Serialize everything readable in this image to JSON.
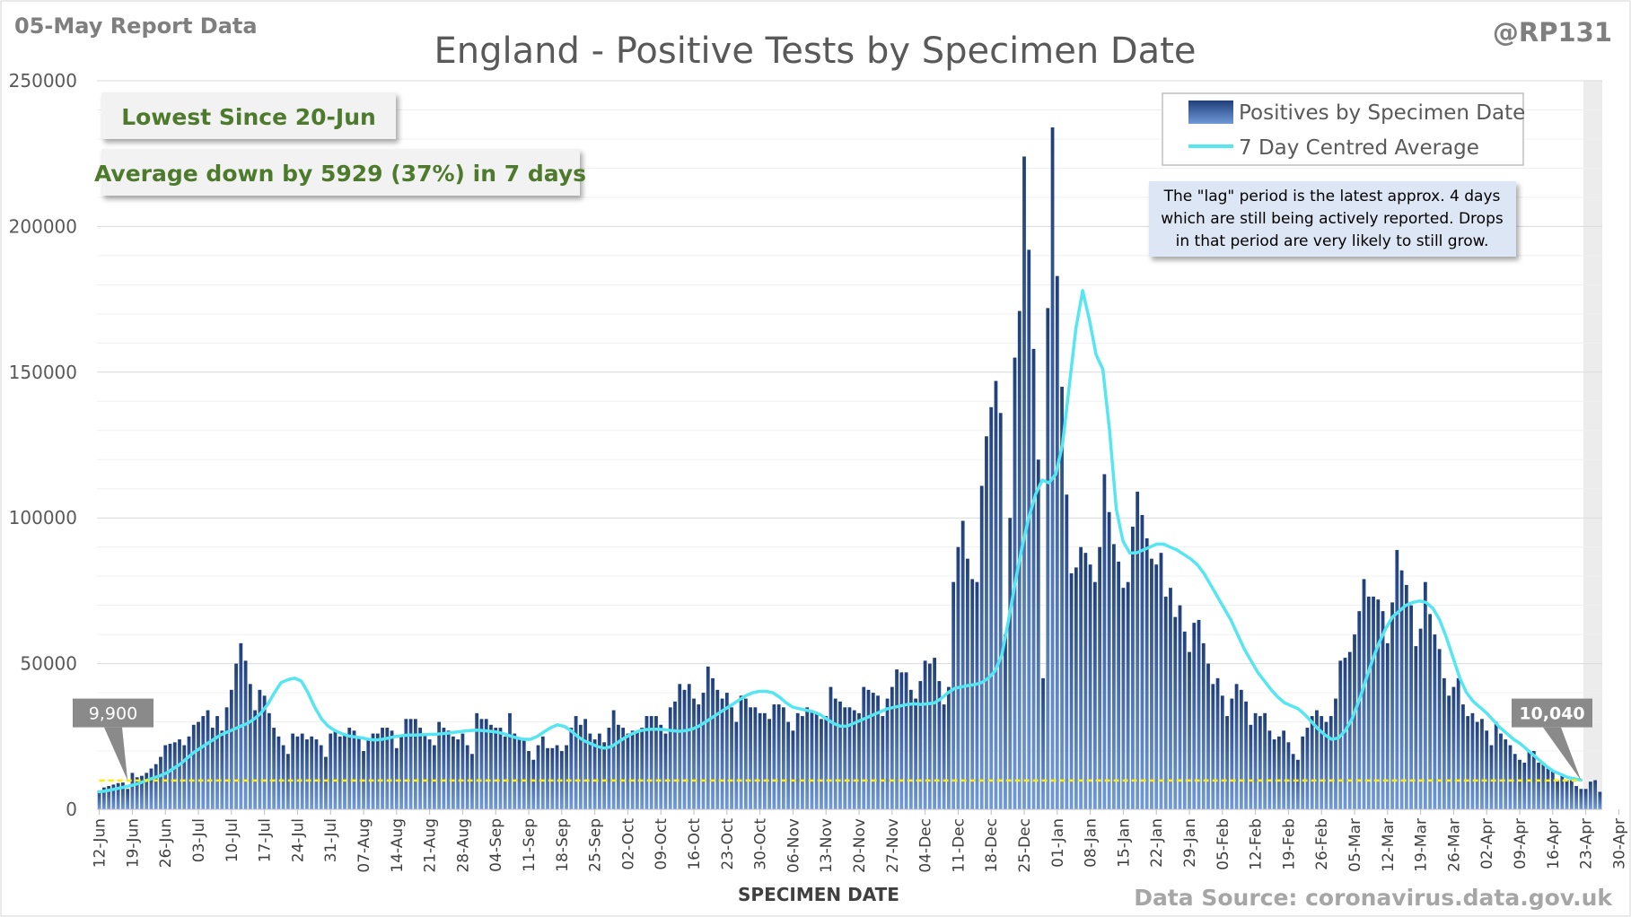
{
  "header": {
    "report_label": "05-May Report Data",
    "handle": "@RP131",
    "source": "Data Source: coronavirus.data.gov.uk"
  },
  "badges": {
    "lowest": "Lowest Since 20-Jun",
    "average_change": "Average down by 5929 (37%) in 7 days"
  },
  "note": {
    "lines": [
      "The \"lag\" period is the latest approx. 4 days",
      "which are still being actively reported. Drops",
      "in that period are very likely to still grow."
    ]
  },
  "colors": {
    "bar": "#2e4f8a",
    "bar_light": "#5a86c8",
    "avg_line": "#55e6f2",
    "threshold": "#ffee00",
    "badge_text": "#4d7a2c",
    "callout": "#8a8a8a",
    "lag_shade": "#ececec"
  },
  "chart_data": {
    "type": "bar",
    "title": "England - Positive Tests by Specimen Date",
    "xlabel": "SPECIMEN DATE",
    "ylabel": "",
    "ylim": [
      0,
      250000
    ],
    "yticks": [
      0,
      50000,
      100000,
      150000,
      200000,
      250000
    ],
    "grid": true,
    "legend_position": "top-right",
    "start_date": "12-Jun",
    "xticks": [
      "12-Jun",
      "19-Jun",
      "26-Jun",
      "03-Jul",
      "10-Jul",
      "17-Jul",
      "24-Jul",
      "31-Jul",
      "07-Aug",
      "14-Aug",
      "21-Aug",
      "28-Aug",
      "04-Sep",
      "11-Sep",
      "18-Sep",
      "25-Sep",
      "02-Oct",
      "09-Oct",
      "16-Oct",
      "23-Oct",
      "30-Oct",
      "06-Nov",
      "13-Nov",
      "20-Nov",
      "27-Nov",
      "04-Dec",
      "11-Dec",
      "18-Dec",
      "25-Dec",
      "01-Jan",
      "08-Jan",
      "15-Jan",
      "22-Jan",
      "29-Jan",
      "05-Feb",
      "12-Feb",
      "19-Feb",
      "26-Feb",
      "05-Mar",
      "12-Mar",
      "19-Mar",
      "26-Mar",
      "02-Apr",
      "09-Apr",
      "16-Apr",
      "23-Apr",
      "30-Apr"
    ],
    "series": [
      {
        "name": "Positives by Specimen Date",
        "values": [
          6500,
          7500,
          8000,
          8500,
          9000,
          9200,
          7000,
          12500,
          11000,
          11500,
          12500,
          14000,
          15500,
          18000,
          22000,
          22500,
          23000,
          24000,
          22000,
          25000,
          29000,
          30000,
          32000,
          34000,
          28000,
          32000,
          27000,
          35000,
          41000,
          50000,
          57000,
          51000,
          43000,
          34000,
          41000,
          39000,
          33000,
          28000,
          25000,
          22000,
          19000,
          26000,
          25000,
          26000,
          24000,
          25000,
          24000,
          22000,
          18000,
          26000,
          27000,
          25000,
          26000,
          28000,
          27000,
          25000,
          20000,
          24000,
          26000,
          26000,
          28000,
          28000,
          27000,
          21000,
          25000,
          31000,
          31000,
          31000,
          28000,
          26000,
          24000,
          22000,
          30000,
          28000,
          27000,
          25000,
          24000,
          26000,
          22000,
          19000,
          33000,
          31000,
          31000,
          29000,
          28000,
          28000,
          25000,
          33000,
          26000,
          24000,
          24000,
          20000,
          17000,
          22000,
          25000,
          21000,
          21000,
          22000,
          20000,
          22000,
          28000,
          32000,
          29000,
          31000,
          26000,
          24000,
          26000,
          23000,
          28000,
          34000,
          29000,
          28000,
          26000,
          27000,
          27000,
          28000,
          32000,
          32000,
          32000,
          29000,
          26000,
          35000,
          37000,
          43000,
          41000,
          43000,
          38000,
          36000,
          40000,
          49000,
          45000,
          41000,
          38000,
          40000,
          35000,
          30000,
          39000,
          38000,
          35000,
          35000,
          33000,
          33000,
          31000,
          36000,
          36000,
          35000,
          30000,
          27000,
          33000,
          32000,
          35000,
          34000,
          33000,
          31000,
          32000,
          42000,
          38000,
          37000,
          35000,
          35000,
          34000,
          33000,
          42000,
          41000,
          40000,
          39000,
          32000,
          38000,
          42000,
          48000,
          47000,
          47000,
          41000,
          38000,
          44000,
          51000,
          50000,
          52000,
          44000,
          36000,
          42000,
          78000,
          90000,
          99000,
          86000,
          79000,
          78000,
          111000,
          128000,
          138000,
          147000,
          136000,
          60000,
          100000,
          155000,
          171000,
          224000,
          192000,
          158000,
          120000,
          45000,
          172000,
          234000,
          183000,
          145000,
          108000,
          81000,
          83000,
          90000,
          88000,
          84000,
          78000,
          90000,
          115000,
          102000,
          91000,
          85000,
          76000,
          78000,
          97000,
          109000,
          101000,
          93000,
          86000,
          84000,
          88000,
          73000,
          76000,
          66000,
          70000,
          61000,
          54000,
          64000,
          65000,
          57000,
          50000,
          43000,
          45000,
          39000,
          32000,
          38000,
          43000,
          41000,
          37000,
          29000,
          33000,
          32000,
          33000,
          27000,
          24000,
          25000,
          27000,
          23000,
          19000,
          17000,
          25000,
          28000,
          32000,
          34000,
          32000,
          30000,
          32000,
          38000,
          51000,
          52000,
          54000,
          60000,
          68000,
          79000,
          73000,
          73000,
          72000,
          68000,
          57000,
          71000,
          89000,
          82000,
          77000,
          70000,
          56000,
          62000,
          78000,
          67000,
          60000,
          55000,
          45000,
          39000,
          42000,
          45000,
          36000,
          32000,
          33000,
          30000,
          31000,
          27000,
          22000,
          30000,
          26000,
          24000,
          22000,
          19000,
          17000,
          16000,
          20000,
          20000,
          16000,
          16000,
          14000,
          13000,
          10000,
          12000,
          10000,
          10000,
          8000,
          7000,
          7000,
          9500,
          10000,
          6000
        ]
      },
      {
        "name": "7 Day Centred Average",
        "values": [
          6000,
          6300,
          6800,
          7300,
          7800,
          8300,
          9000,
          9900,
          10700,
          11500,
          12500,
          14000,
          15500,
          17500,
          19500,
          21000,
          22500,
          24000,
          25500,
          26500,
          27500,
          28500,
          29500,
          31000,
          33000,
          36000,
          40000,
          43500,
          44500,
          45000,
          44000,
          40000,
          35000,
          31000,
          28500,
          27000,
          26000,
          25200,
          24800,
          24500,
          24000,
          23800,
          24000,
          24500,
          25000,
          25300,
          25500,
          25500,
          25600,
          25700,
          25800,
          26000,
          26200,
          26500,
          26800,
          27000,
          27200,
          27000,
          26800,
          26500,
          26000,
          25200,
          24500,
          24000,
          24000,
          25000,
          26500,
          28000,
          29000,
          28500,
          27000,
          25000,
          23500,
          22500,
          21500,
          21000,
          21500,
          23000,
          24500,
          25800,
          26800,
          27300,
          27500,
          27500,
          27300,
          27000,
          26800,
          27000,
          27500,
          28500,
          30000,
          31500,
          33000,
          34500,
          36000,
          37500,
          39000,
          40000,
          40500,
          40500,
          40000,
          38500,
          36500,
          35000,
          34500,
          34000,
          33500,
          32500,
          31000,
          29500,
          28500,
          28500,
          29500,
          30500,
          31500,
          32500,
          33500,
          34500,
          35000,
          35500,
          36000,
          36200,
          36000,
          36200,
          36500,
          38000,
          40000,
          41500,
          42000,
          42500,
          42800,
          43500,
          45000,
          47500,
          53000,
          65000,
          78000,
          90000,
          100000,
          108000,
          113000,
          112000,
          115000,
          125000,
          145000,
          165000,
          178000,
          168000,
          156000,
          151000,
          130000,
          103000,
          92000,
          88000,
          88000,
          89000,
          90000,
          91000,
          91000,
          90000,
          89000,
          87500,
          86000,
          84000,
          81000,
          77000,
          73000,
          69000,
          65000,
          60000,
          55000,
          51000,
          47000,
          44000,
          41000,
          38500,
          36500,
          35500,
          34500,
          32500,
          30000,
          27500,
          25500,
          24000,
          24500,
          27000,
          31000,
          37000,
          44000,
          51000,
          57000,
          62000,
          66000,
          68000,
          70000,
          71000,
          71500,
          71000,
          69000,
          65000,
          59000,
          52000,
          45000,
          40000,
          37000,
          35000,
          33000,
          30500,
          28000,
          26000,
          24000,
          22500,
          20500,
          18500,
          16500,
          14500,
          13000,
          12000,
          11000,
          10500,
          10040
        ]
      }
    ],
    "series_x_offsets": [
      0,
      23
    ],
    "threshold": {
      "value": 9900,
      "label_start": "9,900",
      "label_end": "10,040"
    },
    "lag_days": 4
  }
}
